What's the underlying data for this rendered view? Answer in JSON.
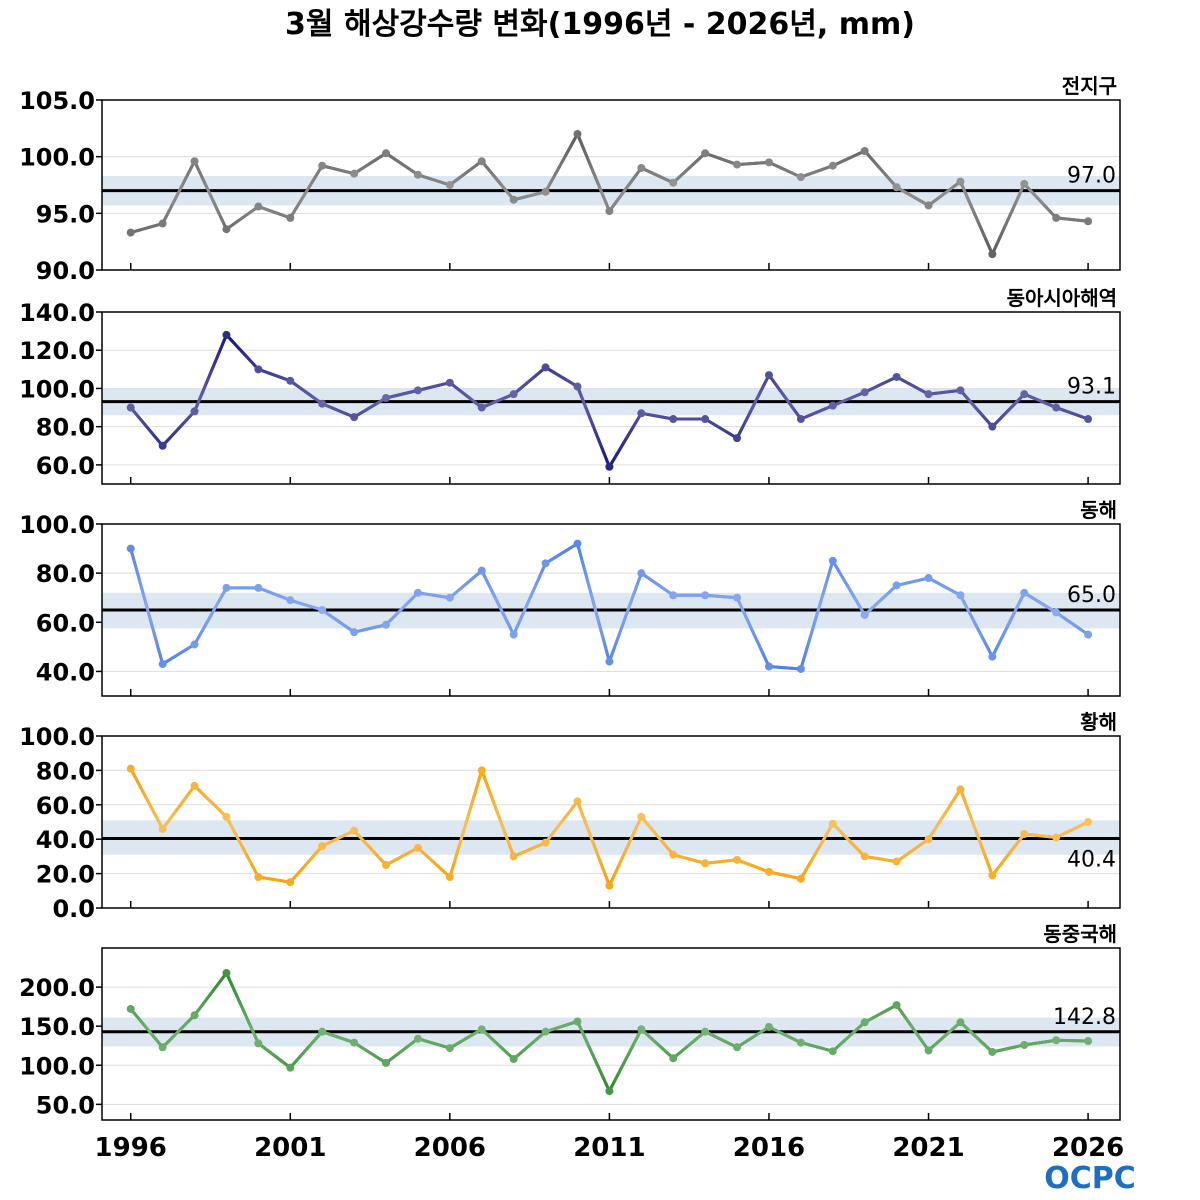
{
  "title": "3월 해상강수량 변화(1996년 - 2026년, mm)",
  "logo_text": "OCPC",
  "colors": {
    "mean_line": "#000000",
    "band": "#dce7f2",
    "grid": "#dddddd"
  },
  "chart_data": [
    {
      "type": "line",
      "region": "전지구",
      "x": [
        1996,
        1997,
        1998,
        1999,
        2000,
        2001,
        2002,
        2003,
        2004,
        2005,
        2006,
        2007,
        2008,
        2009,
        2010,
        2011,
        2012,
        2013,
        2014,
        2015,
        2016,
        2017,
        2018,
        2019,
        2020,
        2021,
        2022,
        2023,
        2024,
        2025,
        2026
      ],
      "values": [
        93.3,
        94.1,
        99.6,
        93.6,
        95.6,
        94.6,
        99.2,
        98.5,
        100.3,
        98.4,
        97.5,
        99.6,
        96.2,
        96.9,
        102.0,
        95.2,
        99.0,
        97.7,
        100.3,
        99.3,
        99.5,
        98.2,
        99.2,
        100.5,
        97.3,
        95.7,
        97.8,
        91.4,
        97.6,
        94.6,
        94.3
      ],
      "mean": 97.0,
      "mean_label": "97.0",
      "band": [
        95.7,
        98.3
      ],
      "ylim": [
        90,
        105
      ],
      "yticks": [
        "90.0",
        "95.0",
        "100.0",
        "105.0"
      ],
      "color": "#5a5a5a"
    },
    {
      "type": "line",
      "region": "동아시아해역",
      "x": [
        1996,
        1997,
        1998,
        1999,
        2000,
        2001,
        2002,
        2003,
        2004,
        2005,
        2006,
        2007,
        2008,
        2009,
        2010,
        2011,
        2012,
        2013,
        2014,
        2015,
        2016,
        2017,
        2018,
        2019,
        2020,
        2021,
        2022,
        2023,
        2024,
        2025,
        2026
      ],
      "values": [
        90,
        70,
        88,
        128,
        110,
        104,
        92,
        85,
        95,
        99,
        103,
        90,
        97,
        111,
        101,
        59,
        87,
        84,
        84,
        74,
        107,
        84,
        91,
        98,
        106,
        97,
        99,
        80,
        97,
        90,
        84
      ],
      "mean": 93.1,
      "mean_label": "93.1",
      "band": [
        86,
        100
      ],
      "ylim": [
        50,
        140
      ],
      "yticks": [
        "60.0",
        "80.0",
        "100.0",
        "120.0",
        "140.0"
      ],
      "color": "#17177a"
    },
    {
      "type": "line",
      "region": "동해",
      "x": [
        1996,
        1997,
        1998,
        1999,
        2000,
        2001,
        2002,
        2003,
        2004,
        2005,
        2006,
        2007,
        2008,
        2009,
        2010,
        2011,
        2012,
        2013,
        2014,
        2015,
        2016,
        2017,
        2018,
        2019,
        2020,
        2021,
        2022,
        2023,
        2024,
        2025,
        2026
      ],
      "values": [
        90,
        43,
        51,
        74,
        74,
        69,
        65,
        56,
        59,
        72,
        70,
        81,
        55,
        84,
        92,
        44,
        80,
        71,
        71,
        70,
        42,
        41,
        85,
        63,
        75,
        78,
        71,
        46,
        72,
        64,
        55
      ],
      "mean": 65.0,
      "mean_label": "65.0",
      "band": [
        57.5,
        72
      ],
      "ylim": [
        30,
        100
      ],
      "yticks": [
        "40.0",
        "60.0",
        "80.0",
        "100.0"
      ],
      "color": "#4f80e6"
    },
    {
      "type": "line",
      "region": "황해",
      "x": [
        1996,
        1997,
        1998,
        1999,
        2000,
        2001,
        2002,
        2003,
        2004,
        2005,
        2006,
        2007,
        2008,
        2009,
        2010,
        2011,
        2012,
        2013,
        2014,
        2015,
        2016,
        2017,
        2018,
        2019,
        2020,
        2021,
        2022,
        2023,
        2024,
        2025,
        2026
      ],
      "values": [
        81,
        46,
        71,
        53,
        18,
        15,
        36,
        45,
        25,
        35,
        18,
        80,
        30,
        38,
        62,
        13,
        53,
        31,
        26,
        28,
        21,
        17,
        49,
        30,
        27,
        40,
        69,
        19,
        43,
        41,
        50
      ],
      "mean": 40.4,
      "mean_label": "40.4",
      "band": [
        31,
        51
      ],
      "ylim": [
        0,
        100
      ],
      "yticks": [
        "0.0",
        "20.0",
        "40.0",
        "60.0",
        "80.0",
        "100.0"
      ],
      "color": "#f5a10a"
    },
    {
      "type": "line",
      "region": "동중국해",
      "x": [
        1996,
        1997,
        1998,
        1999,
        2000,
        2001,
        2002,
        2003,
        2004,
        2005,
        2006,
        2007,
        2008,
        2009,
        2010,
        2011,
        2012,
        2013,
        2014,
        2015,
        2016,
        2017,
        2018,
        2019,
        2020,
        2021,
        2022,
        2023,
        2024,
        2025,
        2026
      ],
      "values": [
        172,
        123,
        164,
        218,
        128,
        97,
        143,
        129,
        103,
        134,
        122,
        146,
        108,
        143,
        156,
        67,
        146,
        109,
        143,
        123,
        149,
        129,
        118,
        155,
        177,
        119,
        155,
        117,
        126,
        132,
        131
      ],
      "mean": 142.8,
      "mean_label": "142.8",
      "band": [
        124,
        161
      ],
      "ylim": [
        30,
        250
      ],
      "yticks": [
        "50.0",
        "100.0",
        "150.0",
        "200.0"
      ],
      "color": "#2d8a2d"
    }
  ],
  "xticks": [
    "1996",
    "2001",
    "2006",
    "2011",
    "2016",
    "2021",
    "2026"
  ]
}
